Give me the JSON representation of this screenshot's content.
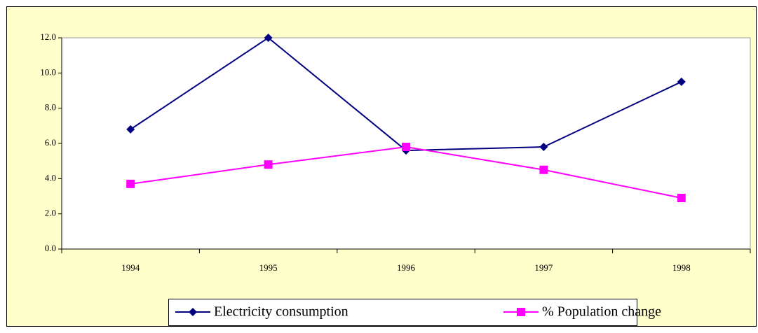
{
  "chart_data": {
    "type": "line",
    "categories": [
      "1994",
      "1995",
      "1996",
      "1997",
      "1998"
    ],
    "series": [
      {
        "name": "Electricity consumption",
        "color": "#000080",
        "marker": "diamond",
        "values": [
          6.8,
          12.0,
          5.6,
          5.8,
          9.5
        ]
      },
      {
        "name": "% Population change",
        "color": "#ff00ff",
        "marker": "square",
        "values": [
          3.7,
          4.8,
          5.8,
          4.5,
          2.9
        ]
      }
    ],
    "ylim": [
      0,
      12
    ],
    "yticks": [
      {
        "value": 0,
        "label": "0.0"
      },
      {
        "value": 2,
        "label": "2.0"
      },
      {
        "value": 4,
        "label": "4.0"
      },
      {
        "value": 6,
        "label": "6.0"
      },
      {
        "value": 8,
        "label": "8.0"
      },
      {
        "value": 10,
        "label": "10.0"
      },
      {
        "value": 12,
        "label": "12.0"
      }
    ],
    "legend": "bottom"
  }
}
